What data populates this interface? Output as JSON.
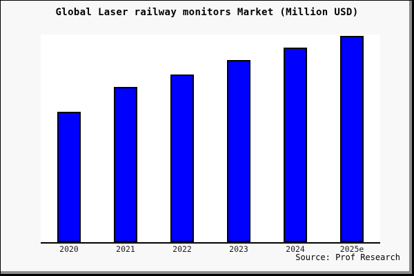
{
  "chart": {
    "title": "Global Laser railway monitors Market (Million USD)",
    "source": "Source: Prof Research"
  },
  "chart_data": {
    "type": "bar",
    "title": "Global Laser railway monitors Market (Million USD)",
    "categories": [
      "2020",
      "2021",
      "2022",
      "2023",
      "2024",
      "2025e"
    ],
    "values": [
      63,
      75,
      81,
      88,
      94,
      100
    ],
    "value_scale": "relative index (no y-axis tick labels visible; 2025e = 100)",
    "xlabel": "",
    "ylabel": "",
    "ylim": [
      0,
      100.5
    ],
    "grid": false,
    "legend": null,
    "y_axis_visible": false,
    "x_axis_line": true,
    "bar_color": "#0000ff",
    "bar_edge_color": "#000000",
    "plot_bg": "#ffffff",
    "page_bg": "#f8f8f8",
    "annotation": "Source: Prof Research"
  }
}
